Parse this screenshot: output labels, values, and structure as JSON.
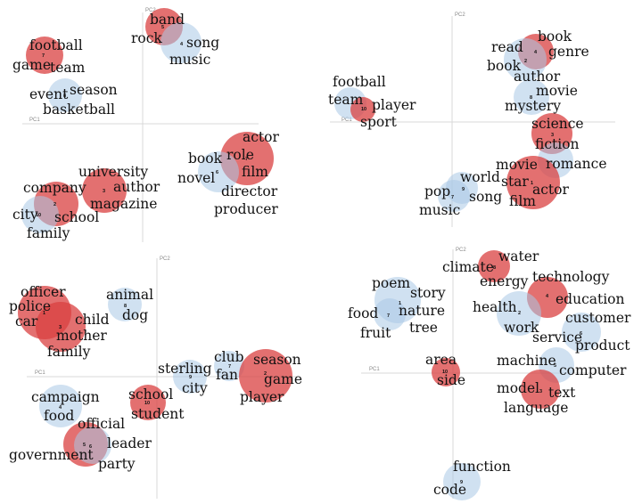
{
  "colors": {
    "topic_a": "#d94040",
    "topic_b": "#a9c8e6",
    "axis": "#d9d9d9"
  },
  "chart_data": [
    {
      "type": "bubble-scatter",
      "xlabel": "PC1",
      "ylabel": "PC2",
      "xlim": [
        -1,
        1
      ],
      "ylim": [
        -1,
        1
      ],
      "grid": false,
      "topics": [
        {
          "id": "7",
          "color": "topic_a",
          "size": 1.0,
          "x": -0.85,
          "y": 0.68,
          "words": [
            "football",
            "game",
            "team"
          ]
        },
        {
          "id": "5",
          "color": "topic_a",
          "size": 1.0,
          "x": 0.18,
          "y": 0.92,
          "words": [
            "band",
            "rock"
          ]
        },
        {
          "id": "4",
          "color": "topic_b",
          "size": 1.1,
          "x": 0.32,
          "y": 0.78,
          "words": [
            "song",
            "music"
          ]
        },
        {
          "id": "8",
          "color": "topic_b",
          "size": 0.9,
          "x": -0.65,
          "y": 0.27,
          "words": [
            "event",
            "season",
            "basketball"
          ]
        },
        {
          "id": "7",
          "color": "topic_a",
          "size": 1.4,
          "x": 0.86,
          "y": -0.32,
          "words": [
            "actor",
            "role",
            "film"
          ]
        },
        {
          "id": "6",
          "color": "topic_b",
          "size": 1.1,
          "x": 0.63,
          "y": -0.46,
          "words": [
            "book",
            "novel",
            "director",
            "producer"
          ]
        },
        {
          "id": "3",
          "color": "topic_a",
          "size": 1.2,
          "x": -0.34,
          "y": -0.62,
          "words": [
            "university",
            "author",
            "magazine"
          ]
        },
        {
          "id": "2",
          "color": "topic_a",
          "size": 1.2,
          "x": -0.75,
          "y": -0.75,
          "words": [
            "company",
            "school"
          ]
        },
        {
          "id": "10",
          "color": "topic_b",
          "size": 1.0,
          "x": -0.9,
          "y": -0.86,
          "words": [
            "city",
            "family"
          ]
        }
      ]
    },
    {
      "type": "bubble-scatter",
      "xlabel": "PC1",
      "ylabel": "PC2",
      "xlim": [
        -1,
        1
      ],
      "ylim": [
        -1,
        1
      ],
      "grid": false,
      "topics": [
        {
          "id": "4",
          "color": "topic_a",
          "size": 1.0,
          "x": 0.48,
          "y": 0.87,
          "words": [
            "book",
            "genre"
          ]
        },
        {
          "id": "2",
          "color": "topic_b",
          "size": 1.1,
          "x": 0.41,
          "y": 0.77,
          "words": [
            "read",
            "book",
            "author"
          ]
        },
        {
          "id": "8",
          "color": "topic_b",
          "size": 1.0,
          "x": 0.5,
          "y": 0.38,
          "words": [
            "movie",
            "mystery"
          ]
        },
        {
          "id": "10",
          "color": "topic_b",
          "size": 0.8,
          "x": -0.68,
          "y": 0.14,
          "words": [
            "football",
            "team"
          ]
        },
        {
          "id": "10",
          "color": "topic_a",
          "size": 0.7,
          "x": -0.55,
          "y": 0.13,
          "words": [
            "player",
            "sport"
          ]
        },
        {
          "id": "3",
          "color": "topic_a",
          "size": 1.1,
          "x": 0.62,
          "y": -0.14,
          "words": [
            "science",
            "fiction"
          ]
        },
        {
          "id": "1",
          "color": "topic_b",
          "size": 1.0,
          "x": 0.65,
          "y": -0.37,
          "words": [
            "romance"
          ]
        },
        {
          "id": "1",
          "color": "topic_a",
          "size": 1.5,
          "x": 0.52,
          "y": -0.65,
          "words": [
            "movie",
            "star",
            "actor",
            "film"
          ]
        },
        {
          "id": "9",
          "color": "topic_b",
          "size": 0.9,
          "x": 0.01,
          "y": -0.72,
          "words": [
            "world",
            "song"
          ]
        },
        {
          "id": "7",
          "color": "topic_b",
          "size": 0.9,
          "x": -0.07,
          "y": -0.89,
          "words": [
            "pop",
            "music"
          ]
        }
      ]
    },
    {
      "type": "bubble-scatter",
      "xlabel": "PC1",
      "ylabel": "PC2",
      "xlim": [
        -1,
        1
      ],
      "ylim": [
        -1,
        1
      ],
      "grid": false,
      "topics": [
        {
          "id": "1",
          "color": "topic_a",
          "size": 1.4,
          "x": -0.88,
          "y": 0.74,
          "words": [
            "officer",
            "police",
            "car"
          ]
        },
        {
          "id": "3",
          "color": "topic_a",
          "size": 1.3,
          "x": -0.74,
          "y": 0.53,
          "words": [
            "child",
            "mother",
            "family"
          ]
        },
        {
          "id": "8",
          "color": "topic_b",
          "size": 0.9,
          "x": -0.21,
          "y": 0.68,
          "words": [
            "animal",
            "dog"
          ]
        },
        {
          "id": "7",
          "color": "topic_b",
          "size": 0.8,
          "x": 0.55,
          "y": 0.09,
          "words": [
            "club",
            "fan"
          ]
        },
        {
          "id": "2",
          "color": "topic_a",
          "size": 1.4,
          "x": 0.85,
          "y": 0.01,
          "words": [
            "season",
            "game",
            "player"
          ]
        },
        {
          "id": "9",
          "color": "topic_b",
          "size": 0.9,
          "x": 0.23,
          "y": -0.01,
          "words": [
            "sterling",
            "city"
          ]
        },
        {
          "id": "10",
          "color": "topic_a",
          "size": 1.0,
          "x": -0.03,
          "y": -0.24,
          "words": [
            "school",
            "student"
          ]
        },
        {
          "id": "4",
          "color": "topic_b",
          "size": 1.1,
          "x": -0.71,
          "y": -0.26,
          "words": [
            "campaign",
            "food",
            "official"
          ]
        },
        {
          "id": "5",
          "color": "topic_a",
          "size": 1.2,
          "x": -0.5,
          "y": -0.61,
          "words": [
            "government"
          ]
        },
        {
          "id": "6",
          "color": "topic_b",
          "size": 1.0,
          "x": -0.43,
          "y": -0.62,
          "words": [
            "leader",
            "party"
          ]
        }
      ]
    },
    {
      "type": "bubble-scatter",
      "xlabel": "PC1",
      "ylabel": "PC2",
      "xlim": [
        -1,
        1
      ],
      "ylim": [
        -1,
        1
      ],
      "grid": false,
      "topics": [
        {
          "id": "8",
          "color": "topic_a",
          "size": 0.9,
          "x": 0.24,
          "y": 0.96,
          "words": [
            "climate",
            "water",
            "energy"
          ]
        },
        {
          "id": "4",
          "color": "topic_a",
          "size": 1.1,
          "x": 0.55,
          "y": 0.64,
          "words": [
            "technology",
            "education"
          ]
        },
        {
          "id": "1",
          "color": "topic_b",
          "size": 1.2,
          "x": -0.38,
          "y": 0.63,
          "words": [
            "poem",
            "story",
            "nature",
            "tree"
          ]
        },
        {
          "id": "7",
          "color": "topic_b",
          "size": 0.9,
          "x": -0.44,
          "y": 0.48,
          "words": [
            "food",
            "fruit"
          ]
        },
        {
          "id": "2",
          "color": "topic_b",
          "size": 1.1,
          "x": 0.38,
          "y": 0.43,
          "words": [
            "health",
            "work"
          ]
        },
        {
          "id": "6",
          "color": "topic_b",
          "size": 1.0,
          "x": 0.75,
          "y": 0.29,
          "words": [
            "customer",
            "service",
            "product"
          ]
        },
        {
          "id": "5",
          "color": "topic_b",
          "size": 1.0,
          "x": 0.59,
          "y": 0.0,
          "words": [
            "machine",
            "computer"
          ]
        },
        {
          "id": "10",
          "color": "topic_a",
          "size": 0.8,
          "x": -0.04,
          "y": 0.0,
          "words": [
            "area",
            "side"
          ]
        },
        {
          "id": "3",
          "color": "topic_a",
          "size": 1.0,
          "x": 0.51,
          "y": -0.21,
          "words": [
            "model",
            "text",
            "language"
          ]
        },
        {
          "id": "9",
          "color": "topic_b",
          "size": 0.9,
          "x": 0.04,
          "y": -0.87,
          "words": [
            "function",
            "code"
          ]
        }
      ]
    }
  ]
}
